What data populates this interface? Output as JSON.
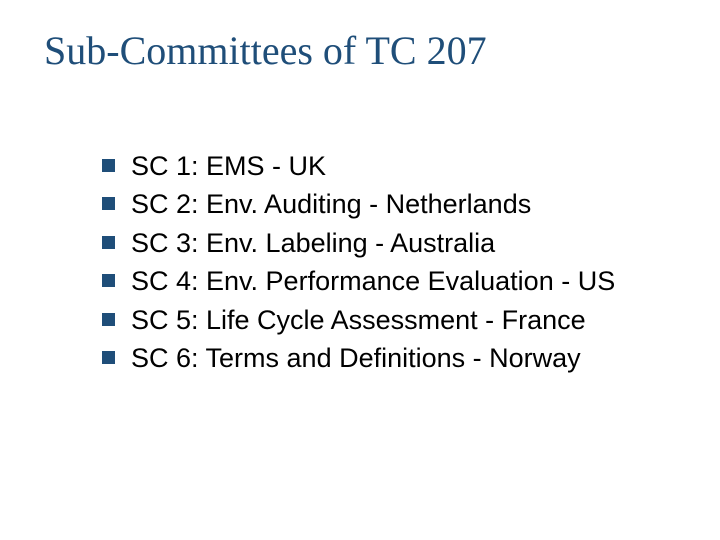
{
  "slide": {
    "title": "Sub-Committees of TC 207",
    "title_color": "#1f4e79",
    "title_font": "Times New Roman",
    "title_fontsize": 40,
    "background_color": "#ffffff",
    "bullet_color": "#1f4e79",
    "bullet_size": 13,
    "body_font": "Arial",
    "body_fontsize": 27,
    "body_color": "#000000",
    "items": [
      "SC 1: EMS - UK",
      "SC 2: Env. Auditing - Netherlands",
      "SC 3: Env. Labeling - Australia",
      "SC 4: Env. Performance Evaluation - US",
      "SC 5: Life Cycle Assessment - France",
      "SC 6: Terms and Definitions - Norway"
    ]
  }
}
